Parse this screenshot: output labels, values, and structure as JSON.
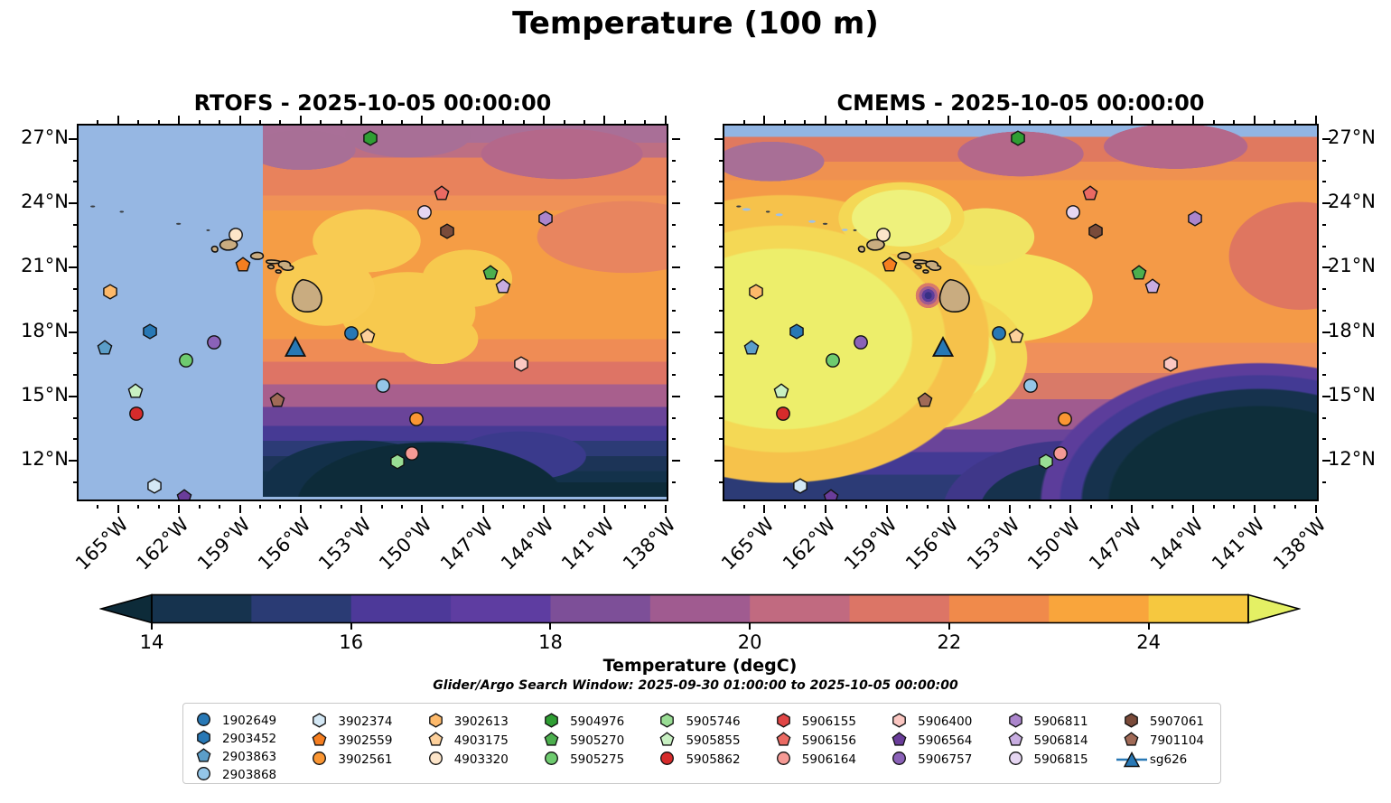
{
  "title": "Temperature (100 m)",
  "panels": [
    {
      "id": "rtofs",
      "title": "RTOFS - 2025-10-05 00:00:00"
    },
    {
      "id": "cmems",
      "title": "CMEMS - 2025-10-05 00:00:00"
    }
  ],
  "subtitle": "Glider/Argo Search Window: 2025-09-30 01:00:00 to 2025-10-05 00:00:00",
  "axes": {
    "lon_labels": [
      "165°W",
      "162°W",
      "159°W",
      "156°W",
      "153°W",
      "150°W",
      "147°W",
      "144°W",
      "141°W",
      "138°W"
    ],
    "lat_labels": [
      "27°N",
      "24°N",
      "21°N",
      "18°N",
      "15°N",
      "12°N"
    ]
  },
  "colorbar": {
    "label": "Temperature (degC)",
    "tick_labels": [
      "14",
      "16",
      "18",
      "20",
      "22",
      "24"
    ],
    "tick_values": [
      14,
      16,
      18,
      20,
      22,
      24
    ],
    "range_min": 14,
    "range_max": 25,
    "segments": [
      "#16334e",
      "#2a3b74",
      "#4d3999",
      "#5e3da1",
      "#7d4f98",
      "#a05b90",
      "#c16a80",
      "#dc7566",
      "#f08a4b",
      "#f9a53c",
      "#f6c83f"
    ],
    "arrow_left": "#0d2b39",
    "arrow_right": "#e4f064"
  },
  "colors": {
    "no_data": "#96b7e3",
    "land": "#c9ac80",
    "coastline": "#111111",
    "islet": "#3a3f44",
    "cmems_speck": "#9ec1e8"
  },
  "floats": {
    "1902649": {
      "shape": "circle",
      "color": "#2878b5"
    },
    "2903452": {
      "shape": "hexagon",
      "color": "#2878b5"
    },
    "2903863": {
      "shape": "pentagon",
      "color": "#5b9ec9"
    },
    "2903868": {
      "shape": "circle",
      "color": "#94c6e8"
    },
    "3902374": {
      "shape": "hexagon",
      "color": "#d4e8f5"
    },
    "3902559": {
      "shape": "pentagon",
      "color": "#f57e20"
    },
    "3902561": {
      "shape": "circle",
      "color": "#fa9633"
    },
    "3902613": {
      "shape": "hexagon",
      "color": "#fdb96a"
    },
    "4903175": {
      "shape": "pentagon",
      "color": "#fdd09b"
    },
    "4903320": {
      "shape": "circle",
      "color": "#fde5c9"
    },
    "5904976": {
      "shape": "hexagon",
      "color": "#2f9e33"
    },
    "5905270": {
      "shape": "pentagon",
      "color": "#4caf4e"
    },
    "5905275": {
      "shape": "circle",
      "color": "#6ecb6f"
    },
    "5905746": {
      "shape": "hexagon",
      "color": "#99dd94"
    },
    "5905855": {
      "shape": "pentagon",
      "color": "#c8f0c2"
    },
    "5905862": {
      "shape": "circle",
      "color": "#d62b2b"
    },
    "5906155": {
      "shape": "hexagon",
      "color": "#e04545"
    },
    "5906156": {
      "shape": "pentagon",
      "color": "#eb6a63"
    },
    "5906164": {
      "shape": "circle",
      "color": "#f59a95"
    },
    "5906400": {
      "shape": "hexagon",
      "color": "#fbc7c2"
    },
    "5906564": {
      "shape": "pentagon",
      "color": "#6a3d9a"
    },
    "5906757": {
      "shape": "circle",
      "color": "#8b62b8"
    },
    "5906811": {
      "shape": "hexagon",
      "color": "#ab85cc"
    },
    "5906814": {
      "shape": "pentagon",
      "color": "#c8ade1"
    },
    "5906815": {
      "shape": "circle",
      "color": "#e6d6f2"
    },
    "5907061": {
      "shape": "hexagon",
      "color": "#7a4b3a"
    },
    "7901104": {
      "shape": "pentagon",
      "color": "#a06a57"
    },
    "sg626": {
      "shape": "triangle",
      "color": "#2878b5"
    }
  },
  "map_markers": [
    {
      "id": "5904976",
      "fx": 0.496,
      "fy": 0.038
    },
    {
      "id": "5906156",
      "fx": 0.617,
      "fy": 0.184
    },
    {
      "id": "5906815",
      "fx": 0.588,
      "fy": 0.234
    },
    {
      "id": "5906811",
      "fx": 0.792,
      "fy": 0.251
    },
    {
      "id": "5907061",
      "fx": 0.626,
      "fy": 0.285
    },
    {
      "id": "4903320",
      "fx": 0.269,
      "fy": 0.294
    },
    {
      "id": "3902559",
      "fx": 0.281,
      "fy": 0.373
    },
    {
      "id": "5905270",
      "fx": 0.699,
      "fy": 0.395
    },
    {
      "id": "5906814",
      "fx": 0.721,
      "fy": 0.431
    },
    {
      "id": "3902613",
      "fx": 0.056,
      "fy": 0.445
    },
    {
      "id": "2903452",
      "fx": 0.124,
      "fy": 0.55
    },
    {
      "id": "1902649",
      "fx": 0.464,
      "fy": 0.555
    },
    {
      "id": "4903175",
      "fx": 0.492,
      "fy": 0.562
    },
    {
      "id": "5906757",
      "fx": 0.232,
      "fy": 0.579
    },
    {
      "id": "sg626",
      "fx": 0.369,
      "fy": 0.591
    },
    {
      "id": "2903863",
      "fx": 0.048,
      "fy": 0.593
    },
    {
      "id": "5905275",
      "fx": 0.185,
      "fy": 0.627
    },
    {
      "id": "5906400",
      "fx": 0.751,
      "fy": 0.636
    },
    {
      "id": "2903868",
      "fx": 0.517,
      "fy": 0.694
    },
    {
      "id": "5905855",
      "fx": 0.099,
      "fy": 0.708
    },
    {
      "id": "7901104",
      "fx": 0.339,
      "fy": 0.732
    },
    {
      "id": "5905862",
      "fx": 0.101,
      "fy": 0.768
    },
    {
      "id": "3902561",
      "fx": 0.574,
      "fy": 0.782
    },
    {
      "id": "5906164",
      "fx": 0.566,
      "fy": 0.873
    },
    {
      "id": "5905746",
      "fx": 0.542,
      "fy": 0.895
    },
    {
      "id": "3902374",
      "fx": 0.131,
      "fy": 0.959
    },
    {
      "id": "5906564",
      "fx": 0.182,
      "fy": 0.988
    }
  ],
  "legend_columns": [
    [
      "1902649",
      "2903452",
      "2903863",
      "2903868"
    ],
    [
      "3902374",
      "3902559",
      "3902561"
    ],
    [
      "3902613",
      "4903175",
      "4903320"
    ],
    [
      "5904976",
      "5905270",
      "5905275"
    ],
    [
      "5905746",
      "5905855",
      "5905862"
    ],
    [
      "5906155",
      "5906156",
      "5906164"
    ],
    [
      "5906400",
      "5906564",
      "5906757"
    ],
    [
      "5906811",
      "5906814",
      "5906815"
    ],
    [
      "5907061",
      "7901104",
      "sg626"
    ]
  ]
}
